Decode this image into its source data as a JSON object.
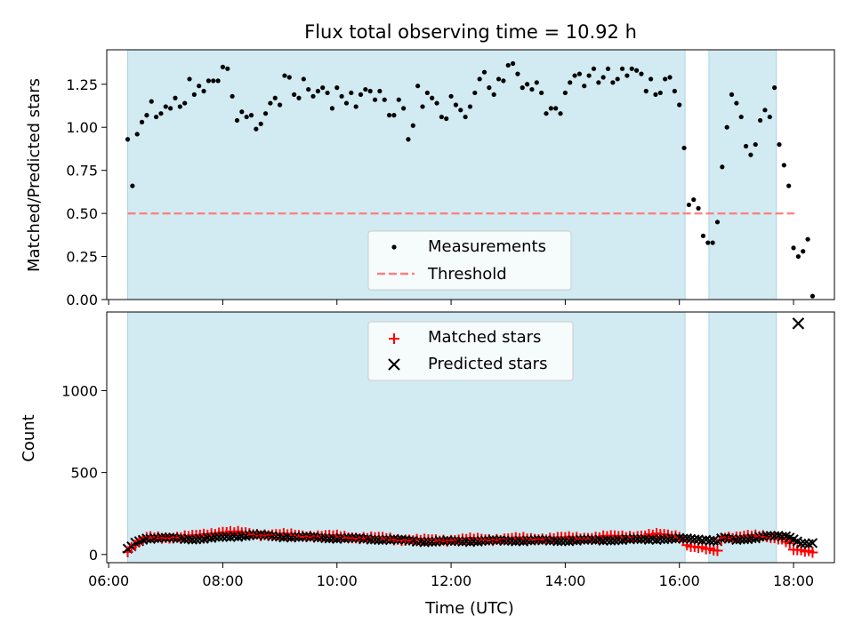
{
  "figure": {
    "title": "Flux total observing time = 10.92 h"
  },
  "colors": {
    "shade": "#add8e6",
    "threshold": "#ff7f7f",
    "matched": "#ff0000",
    "predicted": "#000000",
    "measurement": "#000000",
    "axes": "#000000"
  },
  "chart_data": [
    {
      "type": "scatter",
      "title": "Flux total observing time = 10.92 h",
      "xlabel": "",
      "ylabel": "Matched/Predicted stars",
      "xlim": [
        "05:58",
        "18:43"
      ],
      "ylim": [
        0,
        1.45
      ],
      "x_ticks": [
        "06:00",
        "08:00",
        "10:00",
        "12:00",
        "14:00",
        "16:00",
        "18:00"
      ],
      "y_ticks": [
        "0.00",
        "0.25",
        "0.50",
        "0.75",
        "1.00",
        "1.25"
      ],
      "shaded_intervals": [
        [
          "06:20",
          "16:06"
        ],
        [
          "16:31",
          "17:42"
        ]
      ],
      "legend": {
        "placement": "lower-center",
        "entries": [
          "Measurements",
          "Threshold"
        ]
      },
      "series": [
        {
          "name": "Measurements",
          "marker": "dot",
          "points": [
            [
              "06:20",
              0.93
            ],
            [
              "06:25",
              0.66
            ],
            [
              "06:30",
              0.96
            ],
            [
              "06:35",
              1.03
            ],
            [
              "06:40",
              1.07
            ],
            [
              "06:45",
              1.15
            ],
            [
              "06:50",
              1.06
            ],
            [
              "06:55",
              1.08
            ],
            [
              "07:00",
              1.12
            ],
            [
              "07:05",
              1.11
            ],
            [
              "07:10",
              1.17
            ],
            [
              "07:15",
              1.12
            ],
            [
              "07:20",
              1.14
            ],
            [
              "07:25",
              1.28
            ],
            [
              "07:30",
              1.19
            ],
            [
              "07:35",
              1.24
            ],
            [
              "07:40",
              1.21
            ],
            [
              "07:45",
              1.27
            ],
            [
              "07:50",
              1.27
            ],
            [
              "07:55",
              1.27
            ],
            [
              "08:00",
              1.35
            ],
            [
              "08:05",
              1.34
            ],
            [
              "08:10",
              1.18
            ],
            [
              "08:15",
              1.04
            ],
            [
              "08:20",
              1.09
            ],
            [
              "08:25",
              1.06
            ],
            [
              "08:30",
              1.07
            ],
            [
              "08:35",
              0.99
            ],
            [
              "08:40",
              1.02
            ],
            [
              "08:45",
              1.08
            ],
            [
              "08:50",
              1.14
            ],
            [
              "08:55",
              1.17
            ],
            [
              "09:00",
              1.13
            ],
            [
              "09:05",
              1.3
            ],
            [
              "09:10",
              1.29
            ],
            [
              "09:15",
              1.19
            ],
            [
              "09:20",
              1.17
            ],
            [
              "09:25",
              1.28
            ],
            [
              "09:30",
              1.22
            ],
            [
              "09:35",
              1.18
            ],
            [
              "09:40",
              1.21
            ],
            [
              "09:45",
              1.23
            ],
            [
              "09:50",
              1.2
            ],
            [
              "09:55",
              1.11
            ],
            [
              "10:00",
              1.23
            ],
            [
              "10:05",
              1.18
            ],
            [
              "10:10",
              1.14
            ],
            [
              "10:15",
              1.2
            ],
            [
              "10:20",
              1.12
            ],
            [
              "10:25",
              1.19
            ],
            [
              "10:30",
              1.22
            ],
            [
              "10:35",
              1.21
            ],
            [
              "10:40",
              1.16
            ],
            [
              "10:45",
              1.21
            ],
            [
              "10:50",
              1.16
            ],
            [
              "10:55",
              1.07
            ],
            [
              "11:00",
              1.07
            ],
            [
              "11:05",
              1.16
            ],
            [
              "11:10",
              1.11
            ],
            [
              "11:15",
              0.93
            ],
            [
              "11:20",
              1.01
            ],
            [
              "11:25",
              1.24
            ],
            [
              "11:30",
              1.12
            ],
            [
              "11:35",
              1.2
            ],
            [
              "11:40",
              1.17
            ],
            [
              "11:45",
              1.14
            ],
            [
              "11:50",
              1.06
            ],
            [
              "11:55",
              1.05
            ],
            [
              "12:00",
              1.18
            ],
            [
              "12:05",
              1.13
            ],
            [
              "12:10",
              1.1
            ],
            [
              "12:15",
              1.06
            ],
            [
              "12:20",
              1.12
            ],
            [
              "12:25",
              1.2
            ],
            [
              "12:30",
              1.28
            ],
            [
              "12:35",
              1.32
            ],
            [
              "12:40",
              1.23
            ],
            [
              "12:45",
              1.19
            ],
            [
              "12:50",
              1.28
            ],
            [
              "12:55",
              1.27
            ],
            [
              "13:00",
              1.36
            ],
            [
              "13:05",
              1.37
            ],
            [
              "13:10",
              1.31
            ],
            [
              "13:15",
              1.23
            ],
            [
              "13:20",
              1.25
            ],
            [
              "13:25",
              1.22
            ],
            [
              "13:30",
              1.26
            ],
            [
              "13:35",
              1.2
            ],
            [
              "13:40",
              1.08
            ],
            [
              "13:45",
              1.11
            ],
            [
              "13:50",
              1.11
            ],
            [
              "13:55",
              1.08
            ],
            [
              "14:00",
              1.2
            ],
            [
              "14:05",
              1.26
            ],
            [
              "14:10",
              1.3
            ],
            [
              "14:15",
              1.31
            ],
            [
              "14:20",
              1.24
            ],
            [
              "14:25",
              1.3
            ],
            [
              "14:30",
              1.34
            ],
            [
              "14:35",
              1.26
            ],
            [
              "14:40",
              1.29
            ],
            [
              "14:45",
              1.34
            ],
            [
              "14:50",
              1.26
            ],
            [
              "14:55",
              1.28
            ],
            [
              "15:00",
              1.34
            ],
            [
              "15:05",
              1.3
            ],
            [
              "15:10",
              1.34
            ],
            [
              "15:15",
              1.33
            ],
            [
              "15:20",
              1.31
            ],
            [
              "15:25",
              1.21
            ],
            [
              "15:30",
              1.28
            ],
            [
              "15:35",
              1.19
            ],
            [
              "15:40",
              1.2
            ],
            [
              "15:45",
              1.28
            ],
            [
              "15:50",
              1.29
            ],
            [
              "15:55",
              1.21
            ],
            [
              "16:00",
              1.13
            ],
            [
              "16:05",
              0.88
            ],
            [
              "16:10",
              0.55
            ],
            [
              "16:15",
              0.58
            ],
            [
              "16:20",
              0.53
            ],
            [
              "16:25",
              0.37
            ],
            [
              "16:30",
              0.33
            ],
            [
              "16:35",
              0.33
            ],
            [
              "16:40",
              0.45
            ],
            [
              "16:45",
              0.77
            ],
            [
              "16:50",
              1.0
            ],
            [
              "16:55",
              1.19
            ],
            [
              "17:00",
              1.14
            ],
            [
              "17:05",
              1.06
            ],
            [
              "17:10",
              0.89
            ],
            [
              "17:15",
              0.84
            ],
            [
              "17:20",
              0.9
            ],
            [
              "17:25",
              1.04
            ],
            [
              "17:30",
              1.1
            ],
            [
              "17:35",
              1.06
            ],
            [
              "17:40",
              1.23
            ],
            [
              "17:45",
              0.9
            ],
            [
              "17:50",
              0.78
            ],
            [
              "17:55",
              0.66
            ],
            [
              "18:00",
              0.3
            ],
            [
              "18:05",
              0.25
            ],
            [
              "18:10",
              0.28
            ],
            [
              "18:15",
              0.35
            ],
            [
              "18:20",
              0.02
            ]
          ]
        },
        {
          "name": "Threshold",
          "line": "dashed",
          "points": [
            [
              "06:20",
              0.5
            ],
            [
              "18:01",
              0.5
            ]
          ]
        }
      ]
    },
    {
      "type": "scatter",
      "xlabel": "Time (UTC)",
      "ylabel": "Count",
      "xlim": [
        "05:58",
        "18:43"
      ],
      "ylim": [
        -50,
        1480
      ],
      "x_ticks": [
        "06:00",
        "08:00",
        "10:00",
        "12:00",
        "14:00",
        "16:00",
        "18:00"
      ],
      "y_ticks": [
        "0",
        "500",
        "1000"
      ],
      "shaded_intervals": [
        [
          "06:20",
          "16:06"
        ],
        [
          "16:31",
          "17:42"
        ]
      ],
      "legend": {
        "placement": "top-center",
        "entries": [
          "Matched stars",
          "Predicted stars"
        ]
      },
      "series": [
        {
          "name": "Matched stars",
          "marker": "plus",
          "base": [
            [
              "06:20",
              25
            ],
            [
              "06:30",
              70
            ],
            [
              "06:40",
              100
            ],
            [
              "07:00",
              105
            ],
            [
              "07:30",
              110
            ],
            [
              "08:00",
              140
            ],
            [
              "08:30",
              125
            ],
            [
              "09:00",
              120
            ],
            [
              "10:00",
              110
            ],
            [
              "11:00",
              95
            ],
            [
              "11:30",
              85
            ],
            [
              "12:00",
              90
            ],
            [
              "13:00",
              95
            ],
            [
              "14:00",
              100
            ],
            [
              "15:00",
              110
            ],
            [
              "15:40",
              120
            ],
            [
              "16:00",
              115
            ],
            [
              "16:10",
              50
            ],
            [
              "16:30",
              30
            ],
            [
              "16:40",
              25
            ],
            [
              "16:45",
              110
            ],
            [
              "17:00",
              105
            ],
            [
              "17:30",
              115
            ],
            [
              "17:45",
              100
            ],
            [
              "17:55",
              70
            ],
            [
              "18:00",
              25
            ],
            [
              "18:10",
              20
            ],
            [
              "18:20",
              20
            ]
          ]
        },
        {
          "name": "Predicted stars",
          "marker": "x",
          "base": [
            [
              "06:20",
              30
            ],
            [
              "06:30",
              80
            ],
            [
              "06:40",
              100
            ],
            [
              "07:00",
              100
            ],
            [
              "07:30",
              95
            ],
            [
              "08:00",
              105
            ],
            [
              "08:30",
              120
            ],
            [
              "09:00",
              110
            ],
            [
              "10:00",
              100
            ],
            [
              "11:00",
              90
            ],
            [
              "11:30",
              80
            ],
            [
              "12:00",
              80
            ],
            [
              "13:00",
              85
            ],
            [
              "14:00",
              85
            ],
            [
              "15:00",
              90
            ],
            [
              "15:40",
              95
            ],
            [
              "16:00",
              95
            ],
            [
              "16:10",
              95
            ],
            [
              "16:30",
              90
            ],
            [
              "16:40",
              80
            ],
            [
              "16:45",
              100
            ],
            [
              "17:00",
              90
            ],
            [
              "17:30",
              110
            ],
            [
              "17:45",
              110
            ],
            [
              "17:55",
              110
            ],
            [
              "18:00",
              95
            ],
            [
              "18:10",
              65
            ],
            [
              "18:20",
              65
            ]
          ],
          "outlier": [
            "18:05",
            1410
          ]
        }
      ]
    }
  ]
}
